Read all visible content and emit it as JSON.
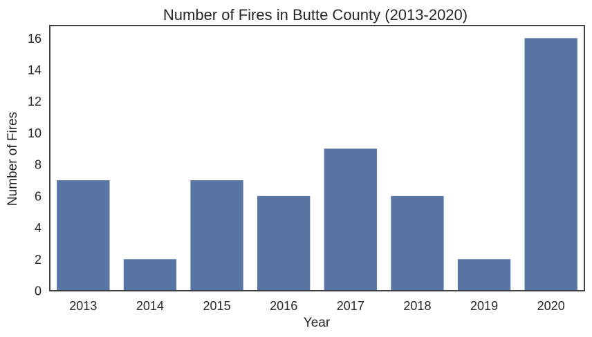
{
  "chart_data": {
    "type": "bar",
    "title": "Number of Fires in Butte County (2013-2020)",
    "xlabel": "Year",
    "ylabel": "Number of Fires",
    "categories": [
      "2013",
      "2014",
      "2015",
      "2016",
      "2017",
      "2018",
      "2019",
      "2020"
    ],
    "values": [
      7,
      2,
      7,
      6,
      9,
      6,
      2,
      16
    ],
    "ylim": [
      0,
      16.8
    ],
    "yticks": [
      0,
      2,
      4,
      6,
      8,
      10,
      12,
      14,
      16
    ],
    "grid": false,
    "legend": "none",
    "colors": {
      "bar": "#5975a4",
      "axis": "#262626",
      "background": "#ffffff"
    }
  }
}
